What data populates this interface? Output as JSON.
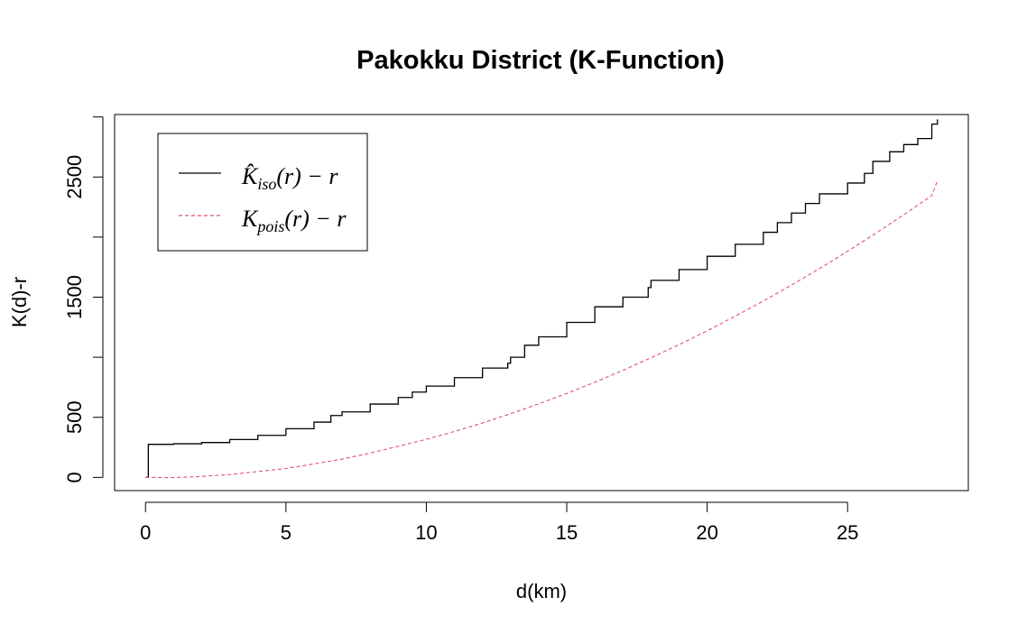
{
  "chart_data": {
    "type": "line",
    "title": "Pakokku District (K-Function)",
    "xlabel": "d(km)",
    "ylabel": "K(d)-r",
    "xlim": [
      -1.1,
      29.3
    ],
    "ylim": [
      -110,
      3020
    ],
    "x_ticks": [
      0,
      5,
      10,
      15,
      20,
      25
    ],
    "y_ticks": [
      0,
      500,
      1000,
      1500,
      2000,
      2500,
      3000
    ],
    "y_tick_labels_shown": [
      "0",
      "500",
      "1500",
      "2500"
    ],
    "grid": false,
    "legend_position": "top-left",
    "series": [
      {
        "name": "K̂iso(r) − r",
        "legend": {
          "base": "K̂",
          "sub": "iso",
          "rest": "(r) − r"
        },
        "color": "#000000",
        "dash": "solid",
        "x": [
          0,
          0.05,
          0.1,
          1,
          2,
          3,
          4,
          5,
          6,
          6.6,
          7,
          8,
          9,
          9.5,
          10,
          11,
          12,
          12.9,
          13,
          13.5,
          14,
          15,
          16,
          17,
          17.9,
          18,
          19,
          20,
          21,
          22,
          22.5,
          23,
          23.5,
          24,
          25,
          25.6,
          25.9,
          26.5,
          27,
          27.5,
          28,
          28.2
        ],
        "y": [
          0,
          0,
          275,
          280,
          290,
          315,
          350,
          405,
          460,
          515,
          545,
          610,
          665,
          710,
          760,
          830,
          910,
          950,
          1000,
          1100,
          1170,
          1290,
          1420,
          1500,
          1580,
          1640,
          1730,
          1840,
          1940,
          2040,
          2120,
          2200,
          2280,
          2360,
          2450,
          2530,
          2630,
          2710,
          2770,
          2820,
          2940,
          2980
        ]
      },
      {
        "name": "Kpois(r) − r",
        "legend": {
          "base": "K",
          "sub": "pois",
          "rest": "(r) − r"
        },
        "color": "#DF536B",
        "dash": "dashed",
        "x": [
          0,
          1,
          2,
          3,
          4,
          5,
          6,
          7,
          8,
          9,
          10,
          11,
          12,
          13,
          14,
          15,
          16,
          17,
          18,
          19,
          20,
          21,
          22,
          23,
          24,
          25,
          26,
          27,
          28,
          28.2
        ],
        "y": [
          0,
          -2,
          8,
          24,
          49,
          74,
          112,
          152,
          203,
          259,
          317,
          382,
          453,
          530,
          612,
          699,
          792,
          891,
          995,
          1105,
          1220,
          1342,
          1468,
          1600,
          1738,
          1882,
          2031,
          2186,
          2346,
          2470
        ]
      }
    ]
  }
}
